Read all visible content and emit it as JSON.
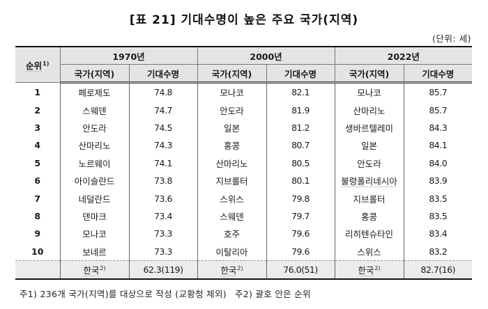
{
  "title": "[표 21] 기대수명이 높은 주요 국가(지역)",
  "unit": "(단위: 세)",
  "header": {
    "rank": "순위",
    "rank_sup": "1)",
    "years": [
      "1970년",
      "2000년",
      "2022년"
    ],
    "country_label": "국가(지역)",
    "value_label": "기대수명"
  },
  "rows": [
    {
      "rank": "1",
      "c1970": "페로제도",
      "v1970": "74.8",
      "c2000": "모나코",
      "v2000": "82.1",
      "c2022": "모나코",
      "v2022": "85.7"
    },
    {
      "rank": "2",
      "c1970": "스웨덴",
      "v1970": "74.7",
      "c2000": "안도라",
      "v2000": "81.9",
      "c2022": "산마리노",
      "v2022": "85.7"
    },
    {
      "rank": "3",
      "c1970": "안도라",
      "v1970": "74.5",
      "c2000": "일본",
      "v2000": "81.2",
      "c2022": "생바르텔레미",
      "v2022": "84.3"
    },
    {
      "rank": "4",
      "c1970": "산마리노",
      "v1970": "74.3",
      "c2000": "홍콩",
      "v2000": "80.7",
      "c2022": "일본",
      "v2022": "84.1"
    },
    {
      "rank": "5",
      "c1970": "노르웨이",
      "v1970": "74.1",
      "c2000": "산마리노",
      "v2000": "80.5",
      "c2022": "안도라",
      "v2022": "84.0"
    },
    {
      "rank": "6",
      "c1970": "아이슬란드",
      "v1970": "73.8",
      "c2000": "지브롤터",
      "v2000": "80.1",
      "c2022": "불령폴리네시아",
      "v2022": "83.9"
    },
    {
      "rank": "7",
      "c1970": "네덜란드",
      "v1970": "73.6",
      "c2000": "스위스",
      "v2000": "79.8",
      "c2022": "지브롤터",
      "v2022": "83.5"
    },
    {
      "rank": "8",
      "c1970": "덴마크",
      "v1970": "73.4",
      "c2000": "스웨덴",
      "v2000": "79.7",
      "c2022": "홍콩",
      "v2022": "83.5"
    },
    {
      "rank": "9",
      "c1970": "모나코",
      "v1970": "73.3",
      "c2000": "호주",
      "v2000": "79.6",
      "c2022": "리히텐슈타인",
      "v2022": "83.4"
    },
    {
      "rank": "10",
      "c1970": "보네르",
      "v1970": "73.3",
      "c2000": "이탈리아",
      "v2000": "79.6",
      "c2022": "스위스",
      "v2022": "83.2"
    }
  ],
  "korea": {
    "rank": "",
    "country": "한국",
    "sup": "2)",
    "v1970": "62.3(119)",
    "v2000": "76.0(51)",
    "v2022": "82.7(16)"
  },
  "notes": {
    "note1": "주1) 236개 국가(지역)를 대상으로 작성 (교황청 제외)",
    "note2": "주2) 괄호 안은 순위"
  }
}
